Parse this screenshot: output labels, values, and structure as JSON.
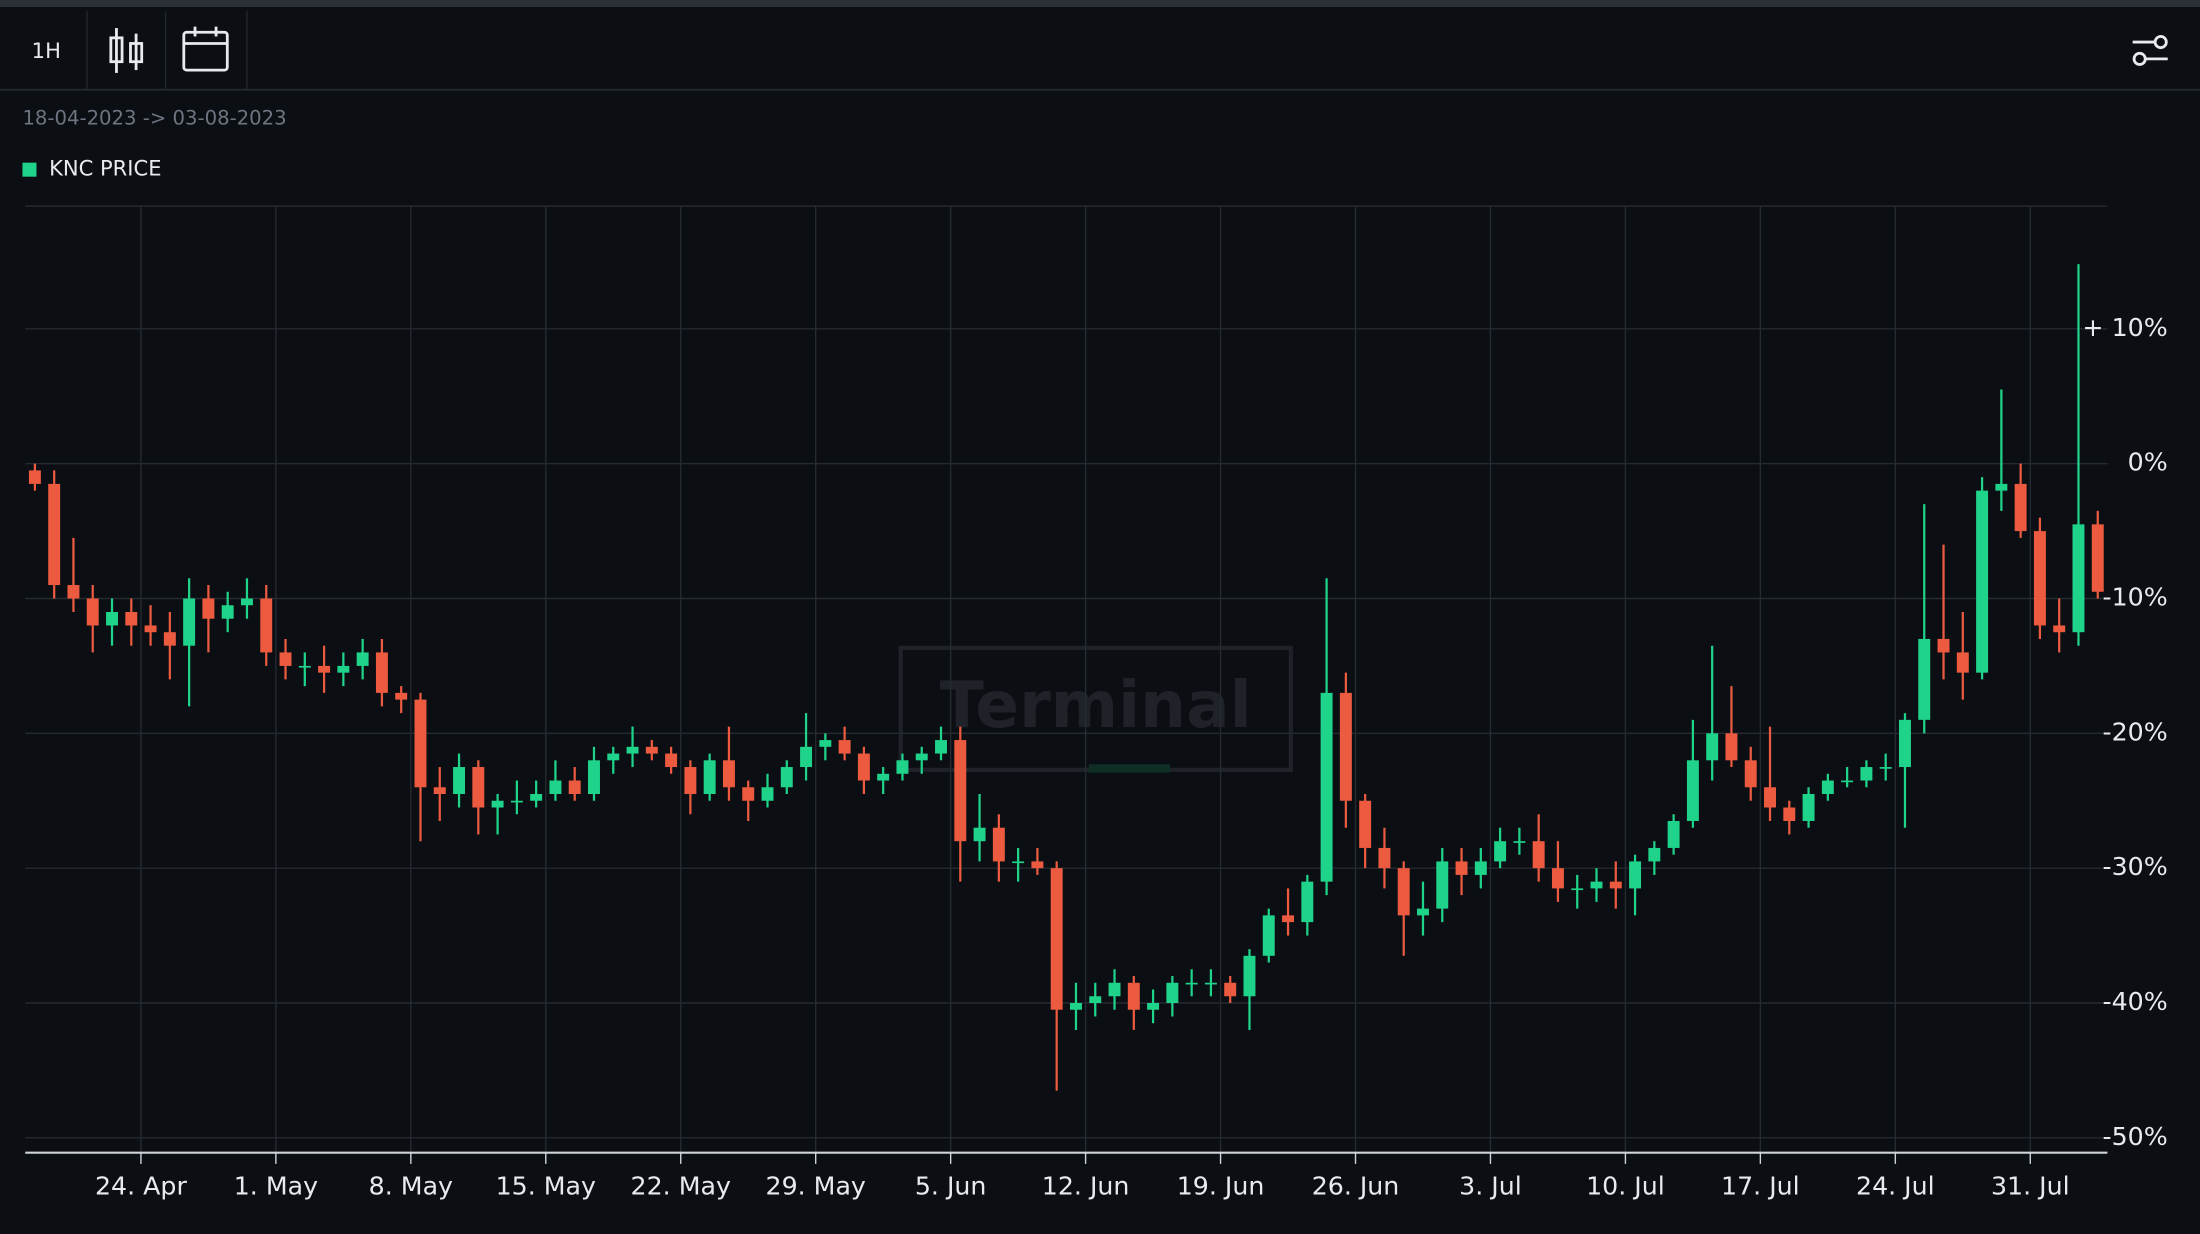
{
  "toolbar": {
    "interval": "1H"
  },
  "range_label": "18-04-2023 -> 03-08-2023",
  "watermark": "Terminal",
  "chart_data": {
    "type": "candlestick",
    "grid": true,
    "up_color": "#1fd38a",
    "down_color": "#ec5b3f",
    "xlim": [
      "2023-04-18",
      "2023-08-04"
    ],
    "ylim": [
      -51.1,
      19.1
    ],
    "yticks": [
      {
        "value": -50,
        "label": "-50%"
      },
      {
        "value": -40,
        "label": "-40%"
      },
      {
        "value": -30,
        "label": "-30%"
      },
      {
        "value": -20,
        "label": "-20%"
      },
      {
        "value": -10,
        "label": "-10%"
      },
      {
        "value": 0,
        "label": "0%"
      },
      {
        "value": 10,
        "label": "+ 10%"
      }
    ],
    "xticks": [
      {
        "value": "2023-04-24",
        "label": "24. Apr"
      },
      {
        "value": "2023-05-01",
        "label": "1. May"
      },
      {
        "value": "2023-05-08",
        "label": "8. May"
      },
      {
        "value": "2023-05-15",
        "label": "15. May"
      },
      {
        "value": "2023-05-22",
        "label": "22. May"
      },
      {
        "value": "2023-05-29",
        "label": "29. May"
      },
      {
        "value": "2023-06-05",
        "label": "5. Jun"
      },
      {
        "value": "2023-06-12",
        "label": "12. Jun"
      },
      {
        "value": "2023-06-19",
        "label": "19. Jun"
      },
      {
        "value": "2023-06-26",
        "label": "26. Jun"
      },
      {
        "value": "2023-07-03",
        "label": "3. Jul"
      },
      {
        "value": "2023-07-10",
        "label": "10. Jul"
      },
      {
        "value": "2023-07-17",
        "label": "17. Jul"
      },
      {
        "value": "2023-07-24",
        "label": "24. Jul"
      },
      {
        "value": "2023-07-31",
        "label": "31. Jul"
      }
    ],
    "series": [
      {
        "name": "KNC PRICE",
        "color": "#1fd38a",
        "x": [
          "2023-04-18",
          "2023-04-19",
          "2023-04-20",
          "2023-04-21",
          "2023-04-22",
          "2023-04-23",
          "2023-04-24",
          "2023-04-25",
          "2023-04-26",
          "2023-04-27",
          "2023-04-28",
          "2023-04-29",
          "2023-04-30",
          "2023-05-01",
          "2023-05-02",
          "2023-05-03",
          "2023-05-04",
          "2023-05-05",
          "2023-05-06",
          "2023-05-07",
          "2023-05-08",
          "2023-05-09",
          "2023-05-10",
          "2023-05-11",
          "2023-05-12",
          "2023-05-13",
          "2023-05-14",
          "2023-05-15",
          "2023-05-16",
          "2023-05-17",
          "2023-05-18",
          "2023-05-19",
          "2023-05-20",
          "2023-05-21",
          "2023-05-22",
          "2023-05-23",
          "2023-05-24",
          "2023-05-25",
          "2023-05-26",
          "2023-05-27",
          "2023-05-28",
          "2023-05-29",
          "2023-05-30",
          "2023-05-31",
          "2023-06-01",
          "2023-06-02",
          "2023-06-03",
          "2023-06-04",
          "2023-06-05",
          "2023-06-06",
          "2023-06-07",
          "2023-06-08",
          "2023-06-09",
          "2023-06-10",
          "2023-06-11",
          "2023-06-12",
          "2023-06-13",
          "2023-06-14",
          "2023-06-15",
          "2023-06-16",
          "2023-06-17",
          "2023-06-18",
          "2023-06-19",
          "2023-06-20",
          "2023-06-21",
          "2023-06-22",
          "2023-06-23",
          "2023-06-24",
          "2023-06-25",
          "2023-06-26",
          "2023-06-27",
          "2023-06-28",
          "2023-06-29",
          "2023-06-30",
          "2023-07-01",
          "2023-07-02",
          "2023-07-03",
          "2023-07-04",
          "2023-07-05",
          "2023-07-06",
          "2023-07-07",
          "2023-07-08",
          "2023-07-09",
          "2023-07-10",
          "2023-07-11",
          "2023-07-12",
          "2023-07-13",
          "2023-07-14",
          "2023-07-15",
          "2023-07-16",
          "2023-07-17",
          "2023-07-18",
          "2023-07-19",
          "2023-07-20",
          "2023-07-21",
          "2023-07-22",
          "2023-07-23",
          "2023-07-24",
          "2023-07-25",
          "2023-07-26",
          "2023-07-27",
          "2023-07-28",
          "2023-07-29",
          "2023-07-30",
          "2023-07-31",
          "2023-08-01",
          "2023-08-02",
          "2023-08-03"
        ],
        "open": [
          -0.5,
          -1.5,
          -9,
          -10,
          -12,
          -11,
          -12,
          -12.5,
          -13.5,
          -10,
          -11.5,
          -10.5,
          -10,
          -14,
          -15,
          -15,
          -15.5,
          -15,
          -14,
          -17,
          -17.5,
          -24,
          -24.5,
          -22.5,
          -25.5,
          -25,
          -25,
          -24.5,
          -23.5,
          -24.5,
          -22,
          -21.5,
          -21,
          -21.5,
          -22.5,
          -24.5,
          -22,
          -24,
          -25,
          -24,
          -22.5,
          -21,
          -20.5,
          -21.5,
          -23.5,
          -23,
          -22,
          -21.5,
          -20.5,
          -28,
          -27,
          -29.5,
          -29.5,
          -30,
          -40.5,
          -40,
          -39.5,
          -38.5,
          -40.5,
          -40,
          -38.5,
          -38.5,
          -38.5,
          -39.5,
          -36.5,
          -33.5,
          -34,
          -31,
          -17,
          -25,
          -28.5,
          -30,
          -33.5,
          -33,
          -29.5,
          -30.5,
          -29.5,
          -28,
          -28,
          -30,
          -31.5,
          -31.5,
          -31,
          -31.5,
          -29.5,
          -28.5,
          -26.5,
          -22,
          -20,
          -22,
          -24,
          -25.5,
          -26.5,
          -24.5,
          -23.5,
          -23.5,
          -22.5,
          -22.5,
          -19,
          -13,
          -14,
          -15.5,
          -2,
          -1.5,
          -5,
          -12,
          -12.5,
          -4.5
        ],
        "high": [
          0,
          -0.5,
          -5.5,
          -9,
          -10,
          -10,
          -10.5,
          -11,
          -8.5,
          -9,
          -9.5,
          -8.5,
          -9,
          -13,
          -14,
          -13.5,
          -14,
          -13,
          -13,
          -16.5,
          -17,
          -22.5,
          -21.5,
          -22,
          -24.5,
          -23.5,
          -23.5,
          -22,
          -22.5,
          -21,
          -21,
          -19.5,
          -20.5,
          -21,
          -22,
          -21.5,
          -19.5,
          -23.5,
          -23,
          -22,
          -18.5,
          -20,
          -19.5,
          -21,
          -22.5,
          -21.5,
          -21,
          -19.5,
          -19.5,
          -24.5,
          -26,
          -28.5,
          -28.5,
          -29.5,
          -38.5,
          -38.5,
          -37.5,
          -38,
          -39,
          -38,
          -37.5,
          -37.5,
          -38,
          -36,
          -33,
          -31.5,
          -30.5,
          -8.5,
          -15.5,
          -24.5,
          -27,
          -29.5,
          -31,
          -28.5,
          -28.5,
          -28.5,
          -27,
          -27,
          -26,
          -28,
          -30.5,
          -30,
          -29.5,
          -29,
          -28,
          -26,
          -19,
          -13.5,
          -16.5,
          -21,
          -19.5,
          -25,
          -24,
          -23,
          -22.5,
          -22,
          -21.5,
          -18.5,
          -3,
          -6,
          -11,
          -1,
          5.5,
          0,
          -4,
          -10,
          14.8,
          -3.5
        ],
        "low": [
          -2,
          -10,
          -11,
          -14,
          -13.5,
          -13.5,
          -13.5,
          -16,
          -18,
          -14,
          -12.5,
          -11.5,
          -15,
          -16,
          -16.5,
          -17,
          -16.5,
          -16,
          -18,
          -18.5,
          -28,
          -26.5,
          -25.5,
          -27.5,
          -27.5,
          -26,
          -25.5,
          -25,
          -25,
          -25,
          -23,
          -22.5,
          -22,
          -23,
          -26,
          -25,
          -25,
          -26.5,
          -25.5,
          -24.5,
          -23.5,
          -22,
          -22,
          -24.5,
          -24.5,
          -23.5,
          -23,
          -22,
          -31,
          -29.5,
          -31,
          -31,
          -30.5,
          -46.5,
          -42,
          -41,
          -40.5,
          -42,
          -41.5,
          -41,
          -39.5,
          -39.5,
          -40,
          -42,
          -37,
          -35,
          -35,
          -32,
          -27,
          -30,
          -31.5,
          -36.5,
          -35,
          -34,
          -32,
          -31.5,
          -30,
          -29,
          -31,
          -32.5,
          -33,
          -32.5,
          -33,
          -33.5,
          -30.5,
          -29,
          -27,
          -23.5,
          -22.5,
          -25,
          -26.5,
          -27.5,
          -27,
          -25,
          -24,
          -24,
          -23.5,
          -27,
          -20,
          -16,
          -17.5,
          -16,
          -3.5,
          -5.5,
          -13,
          -14,
          -13.5,
          -10
        ],
        "close": [
          -1.5,
          -9,
          -10,
          -12,
          -11,
          -12,
          -12.5,
          -13.5,
          -10,
          -11.5,
          -10.5,
          -10,
          -14,
          -15,
          -15,
          -15.5,
          -15,
          -14,
          -17,
          -17.5,
          -24,
          -24.5,
          -22.5,
          -25.5,
          -25,
          -25,
          -24.5,
          -23.5,
          -24.5,
          -22,
          -21.5,
          -21,
          -21.5,
          -22.5,
          -24.5,
          -22,
          -24,
          -25,
          -24,
          -22.5,
          -21,
          -20.5,
          -21.5,
          -23.5,
          -23,
          -22,
          -21.5,
          -20.5,
          -28,
          -27,
          -29.5,
          -29.5,
          -30,
          -40.5,
          -40,
          -39.5,
          -38.5,
          -40.5,
          -40,
          -38.5,
          -38.5,
          -38.5,
          -39.5,
          -36.5,
          -33.5,
          -34,
          -31,
          -17,
          -25,
          -28.5,
          -30,
          -33.5,
          -33,
          -29.5,
          -30.5,
          -29.5,
          -28,
          -28,
          -30,
          -31.5,
          -31.5,
          -31,
          -31.5,
          -29.5,
          -28.5,
          -26.5,
          -22,
          -20,
          -22,
          -24,
          -25.5,
          -26.5,
          -24.5,
          -23.5,
          -23.5,
          -22.5,
          -22.5,
          -19,
          -13,
          -14,
          -15.5,
          -2,
          -1.5,
          -5,
          -12,
          -12.5,
          -4.5,
          -9.5
        ]
      }
    ]
  }
}
